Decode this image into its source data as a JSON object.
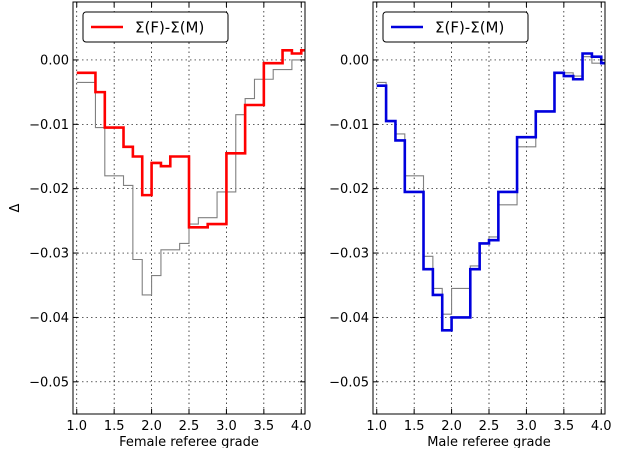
{
  "chart_data": [
    {
      "type": "line",
      "step": "post",
      "xlabel": "Female referee grade",
      "ylabel": "Δ",
      "xlim": [
        0.95,
        4.05
      ],
      "ylim": [
        -0.055,
        0.009
      ],
      "xticks": [
        "1.0",
        "1.5",
        "2.0",
        "2.5",
        "3.0",
        "3.5",
        "4.0"
      ],
      "yticks": [
        "0.00",
        "−0.01",
        "−0.02",
        "−0.03",
        "−0.04",
        "−0.05"
      ],
      "grid": true,
      "legend_position": "upper-left",
      "legend": [
        "Σ(F)-Σ(M)"
      ],
      "series": [
        {
          "name": "Σ(F)-Σ(M)",
          "color": "#ff0000",
          "x": [
            1.0,
            1.125,
            1.25,
            1.375,
            1.5,
            1.625,
            1.75,
            1.875,
            2.0,
            2.125,
            2.25,
            2.375,
            2.5,
            2.625,
            2.75,
            2.875,
            3.0,
            3.125,
            3.25,
            3.375,
            3.5,
            3.625,
            3.75,
            3.875,
            4.0,
            4.05
          ],
          "y": [
            -0.002,
            -0.002,
            -0.005,
            -0.0105,
            -0.0105,
            -0.0135,
            -0.015,
            -0.021,
            -0.016,
            -0.0165,
            -0.015,
            -0.015,
            -0.026,
            -0.026,
            -0.0255,
            -0.0255,
            -0.0145,
            -0.0145,
            -0.007,
            -0.007,
            -0.0005,
            -0.0005,
            0.0015,
            0.001,
            0.0015,
            0.0015
          ]
        },
        {
          "color": "#808080",
          "x": [
            1.0,
            1.125,
            1.25,
            1.375,
            1.5,
            1.625,
            1.75,
            1.875,
            2.0,
            2.125,
            2.25,
            2.375,
            2.5,
            2.625,
            2.75,
            2.875,
            3.0,
            3.125,
            3.25,
            3.375,
            3.5,
            3.625,
            3.75,
            3.875,
            4.0,
            4.05
          ],
          "y": [
            -0.0035,
            -0.0035,
            -0.0105,
            -0.018,
            -0.018,
            -0.0195,
            -0.031,
            -0.0365,
            -0.0335,
            -0.0295,
            -0.0295,
            -0.0285,
            -0.0255,
            -0.0245,
            -0.0245,
            -0.0205,
            -0.0205,
            -0.0085,
            -0.006,
            -0.003,
            -0.003,
            -0.0015,
            -0.0015,
            0.0,
            0.0,
            0.0
          ]
        }
      ]
    },
    {
      "type": "line",
      "step": "post",
      "xlabel": "Male referee grade",
      "xlim": [
        0.95,
        4.05
      ],
      "ylim": [
        -0.055,
        0.009
      ],
      "xticks": [
        "1.0",
        "1.5",
        "2.0",
        "2.5",
        "3.0",
        "3.5",
        "4.0"
      ],
      "yticks": [
        "0.00",
        "−0.01",
        "−0.02",
        "−0.03",
        "−0.04",
        "−0.05"
      ],
      "grid": true,
      "legend_position": "upper-left",
      "legend": [
        "Σ(F)-Σ(M)"
      ],
      "series": [
        {
          "name": "Σ(F)-Σ(M)",
          "color": "#0000dd",
          "x": [
            1.0,
            1.125,
            1.25,
            1.375,
            1.5,
            1.625,
            1.75,
            1.875,
            2.0,
            2.125,
            2.25,
            2.375,
            2.5,
            2.625,
            2.75,
            2.875,
            3.0,
            3.125,
            3.25,
            3.375,
            3.5,
            3.625,
            3.75,
            3.875,
            4.0,
            4.05
          ],
          "y": [
            -0.004,
            -0.0095,
            -0.0125,
            -0.0205,
            -0.0205,
            -0.0325,
            -0.0365,
            -0.042,
            -0.04,
            -0.04,
            -0.0325,
            -0.0285,
            -0.028,
            -0.0205,
            -0.0205,
            -0.012,
            -0.012,
            -0.008,
            -0.008,
            -0.002,
            -0.0025,
            -0.003,
            0.001,
            0.0005,
            -0.0005,
            -0.0005
          ]
        },
        {
          "color": "#808080",
          "x": [
            1.0,
            1.125,
            1.25,
            1.375,
            1.5,
            1.625,
            1.75,
            1.875,
            2.0,
            2.125,
            2.25,
            2.375,
            2.5,
            2.625,
            2.75,
            2.875,
            3.0,
            3.125,
            3.25,
            3.375,
            3.5,
            3.625,
            3.75,
            3.875,
            4.0,
            4.05
          ],
          "y": [
            -0.0035,
            -0.0095,
            -0.0115,
            -0.018,
            -0.018,
            -0.0305,
            -0.0355,
            -0.0395,
            -0.0355,
            -0.0355,
            -0.032,
            -0.0285,
            -0.0275,
            -0.0225,
            -0.0225,
            -0.0135,
            -0.0135,
            -0.008,
            -0.008,
            -0.002,
            -0.002,
            -0.0025,
            0.0005,
            -0.0005,
            0.0,
            0.0
          ]
        }
      ]
    }
  ]
}
